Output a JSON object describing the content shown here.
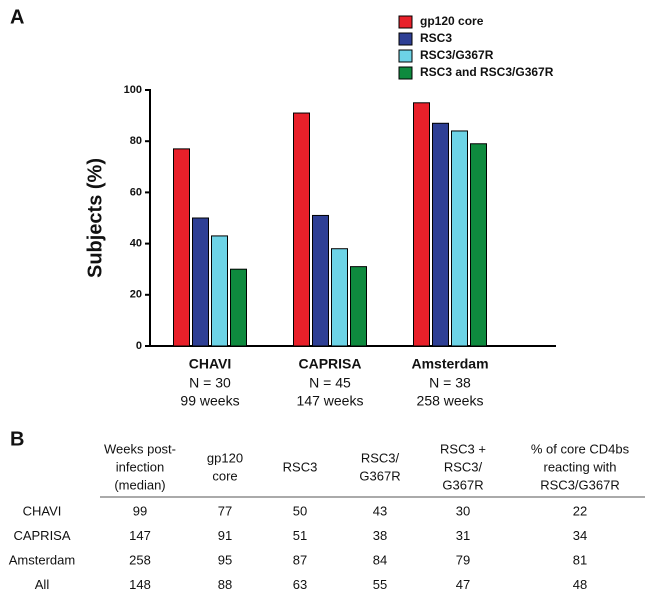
{
  "panel_labels": [
    "A",
    "B"
  ],
  "chart_data": {
    "type": "bar",
    "ylabel": "Subjects (%)",
    "categories": [
      "CHAVI",
      "CAPRISA",
      "Amsterdam"
    ],
    "category_n": [
      "N = 30",
      "N = 45",
      "N = 38"
    ],
    "category_weeks": [
      "99 weeks",
      "147 weeks",
      "258 weeks"
    ],
    "series": [
      {
        "name": "gp120 core",
        "color": "#e8202a",
        "values": [
          77,
          91,
          95
        ]
      },
      {
        "name": "RSC3",
        "color": "#2e3f95",
        "values": [
          50,
          51,
          87
        ]
      },
      {
        "name": "RSC3/G367R",
        "color": "#6dd3e6",
        "values": [
          43,
          38,
          84
        ]
      },
      {
        "name": "RSC3 and RSC3/G367R",
        "color": "#0e8a3e",
        "values": [
          30,
          31,
          79
        ]
      }
    ],
    "ylim": [
      0,
      100
    ],
    "yticks": [
      0,
      20,
      40,
      60,
      80,
      100
    ],
    "legend": "top-right"
  },
  "table": {
    "header": [
      [
        "Weeks post-",
        "infection",
        "(median)"
      ],
      [
        "gp120",
        "core"
      ],
      [
        "RSC3"
      ],
      [
        "RSC3/",
        "G367R"
      ],
      [
        "RSC3 +",
        "RSC3/",
        "G367R"
      ],
      [
        "% of core CD4bs",
        "reacting with",
        "RSC3/G367R"
      ]
    ],
    "rows": [
      [
        "CHAVI",
        99,
        77,
        50,
        43,
        30,
        22
      ],
      [
        "CAPRISA",
        147,
        91,
        51,
        38,
        31,
        34
      ],
      [
        "Amsterdam",
        258,
        95,
        87,
        84,
        79,
        81
      ],
      [
        "All",
        148,
        88,
        63,
        55,
        47,
        48
      ]
    ]
  }
}
